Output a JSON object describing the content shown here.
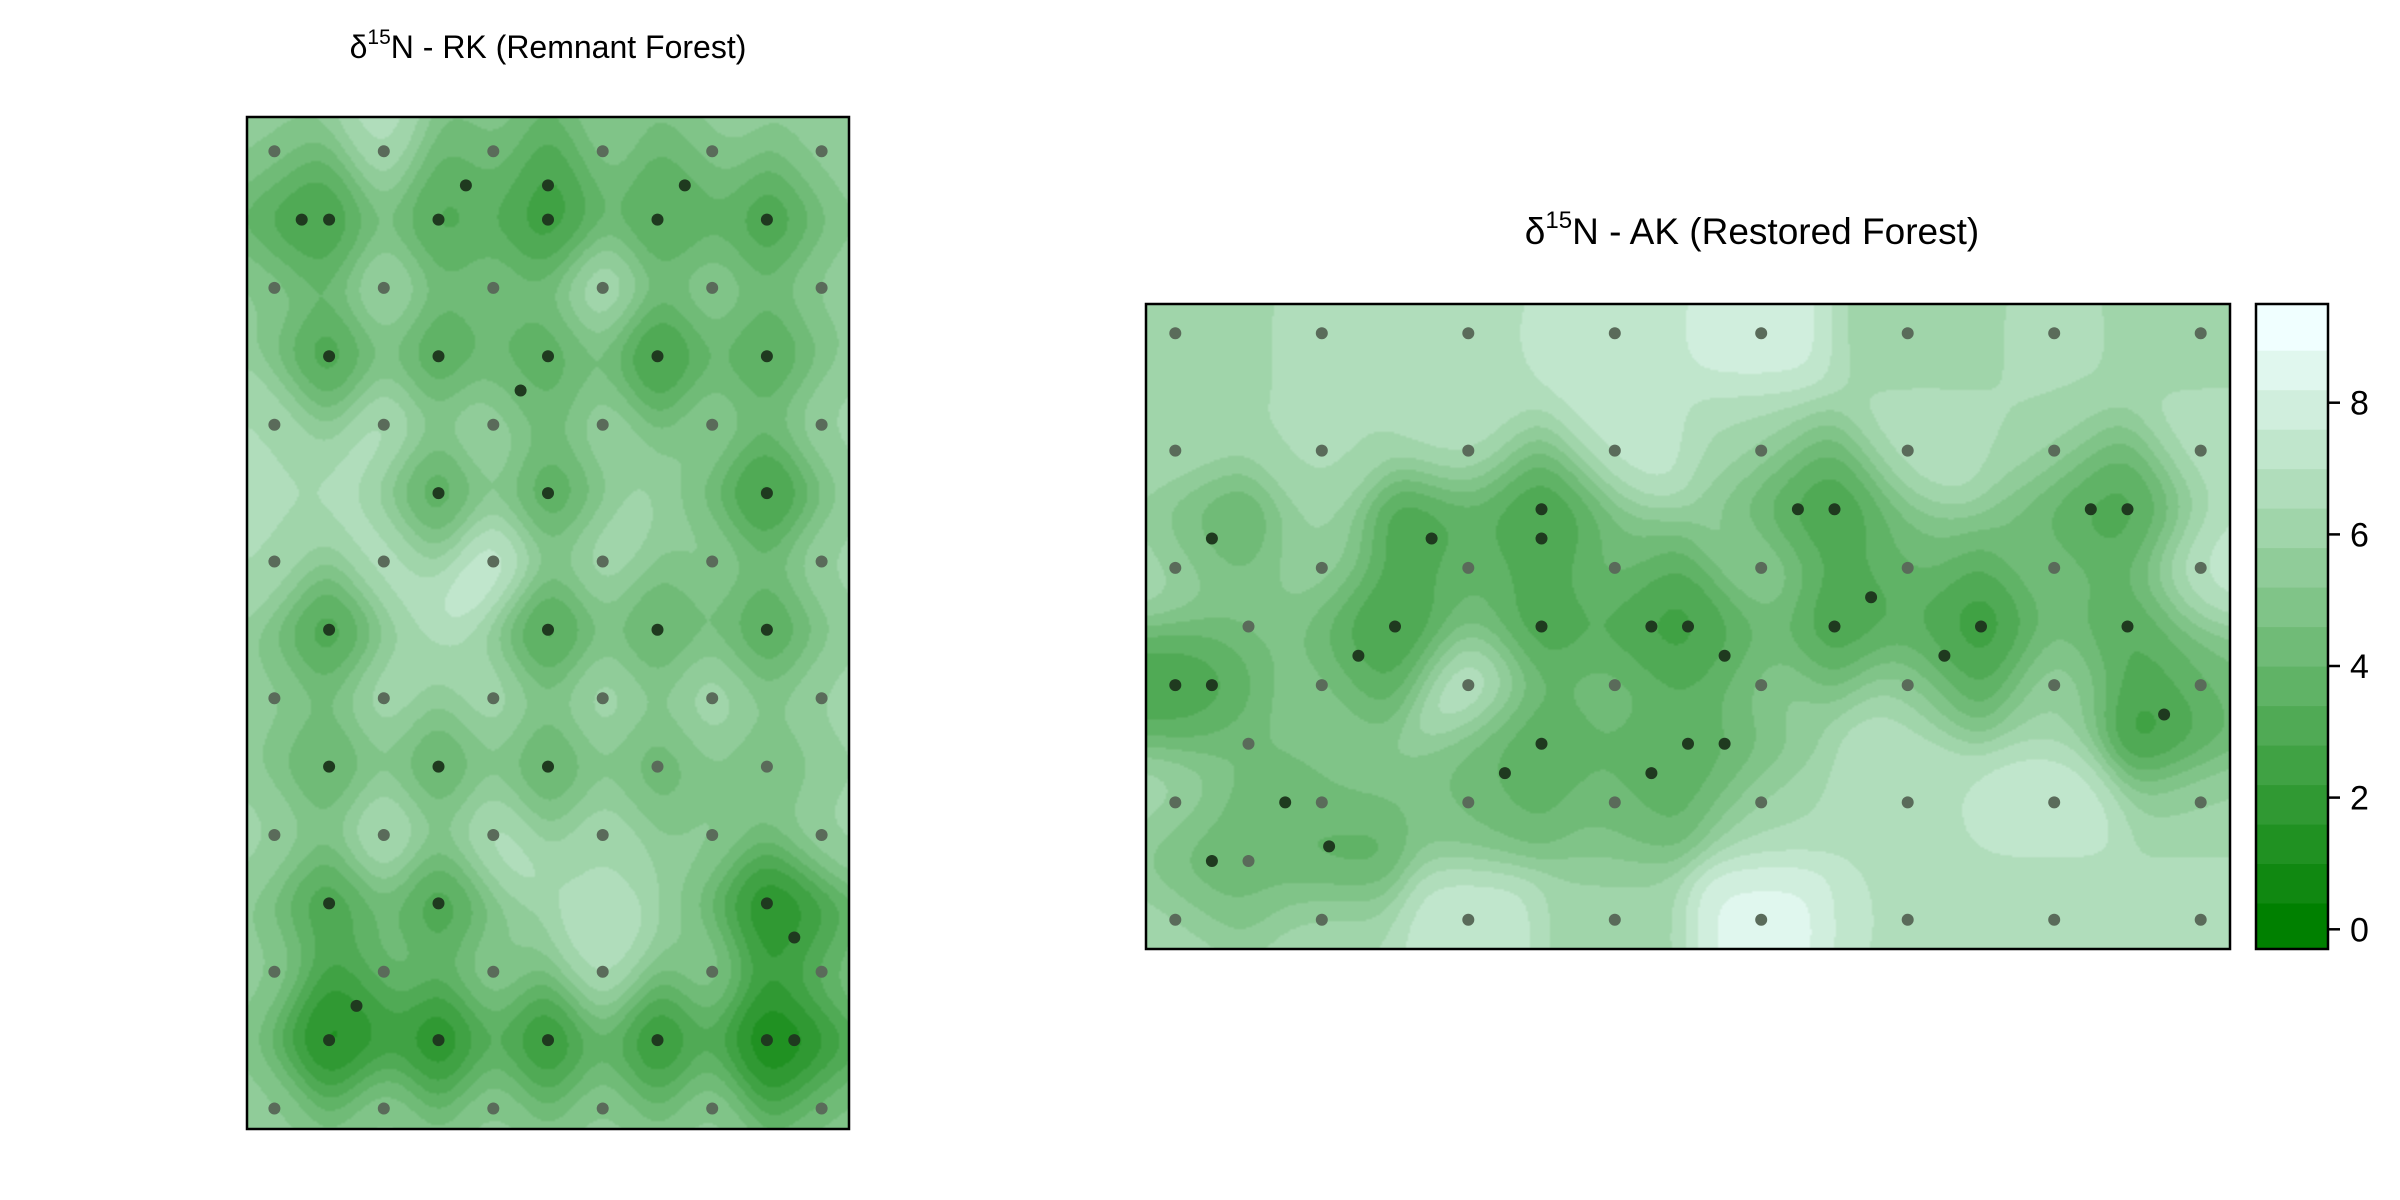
{
  "chart_data": [
    {
      "type": "heatmap",
      "title_prefix": "δ",
      "title_superscript": "15",
      "title_suffix": "N - RK (Remnant Forest)",
      "xlabel": "",
      "ylabel": "",
      "zlim": [
        -0.3,
        9.5
      ],
      "grid": false,
      "samples": [
        [
          0,
          0,
          5.5
        ],
        [
          1,
          0,
          6.8
        ],
        [
          2,
          0,
          5.5
        ],
        [
          3,
          0,
          5.5
        ],
        [
          4,
          0,
          6.0
        ],
        [
          5,
          0,
          5.5
        ],
        [
          0.25,
          0.5,
          2.0
        ],
        [
          0.5,
          0.5,
          3.0
        ],
        [
          1.5,
          0.5,
          3.0
        ],
        [
          1.75,
          0.25,
          3.0
        ],
        [
          2.5,
          0.25,
          2.0
        ],
        [
          2.5,
          0.5,
          2.3
        ],
        [
          3.5,
          0.5,
          3.0
        ],
        [
          3.75,
          0.25,
          3.0
        ],
        [
          4.5,
          0.5,
          2.5
        ],
        [
          0,
          1,
          5.5
        ],
        [
          1,
          1,
          6.5
        ],
        [
          2,
          1,
          4.8
        ],
        [
          3,
          1,
          7.0
        ],
        [
          4,
          1,
          5.5
        ],
        [
          5,
          1,
          5.5
        ],
        [
          0.5,
          1.5,
          2.5
        ],
        [
          1.5,
          1.5,
          3.0
        ],
        [
          2.5,
          1.5,
          3.5
        ],
        [
          2.25,
          1.75,
          3.2
        ],
        [
          3.5,
          1.5,
          2.0
        ],
        [
          4.5,
          1.5,
          3.0
        ],
        [
          0,
          2,
          6.5
        ],
        [
          1,
          2,
          7.0
        ],
        [
          2,
          2,
          7.2
        ],
        [
          3,
          2,
          6.0
        ],
        [
          4,
          2,
          5.5
        ],
        [
          5,
          2,
          6.0
        ],
        [
          1.5,
          2.5,
          3.0
        ],
        [
          2.5,
          2.5,
          3.0
        ],
        [
          4.5,
          2.5,
          2.0
        ],
        [
          0,
          3,
          6.5
        ],
        [
          1,
          3,
          7.0
        ],
        [
          2,
          3,
          8.0
        ],
        [
          3,
          3,
          6.5
        ],
        [
          4,
          3,
          5.5
        ],
        [
          5,
          3,
          6.0
        ],
        [
          0.5,
          3.5,
          2.5
        ],
        [
          2.5,
          3.5,
          2.5
        ],
        [
          3.5,
          3.5,
          3.5
        ],
        [
          4.5,
          3.5,
          3.0
        ],
        [
          0,
          4,
          5.5
        ],
        [
          1,
          4,
          6.5
        ],
        [
          2,
          4,
          6.5
        ],
        [
          3,
          4,
          6.5
        ],
        [
          4,
          4,
          6.5
        ],
        [
          5,
          4,
          6.0
        ],
        [
          0.5,
          4.5,
          3.5
        ],
        [
          1.5,
          4.5,
          3.5
        ],
        [
          2.5,
          4.5,
          3.5
        ],
        [
          3.5,
          4.5,
          4.0
        ],
        [
          4.5,
          4.5,
          4.5
        ],
        [
          0,
          5,
          6.0
        ],
        [
          1,
          5,
          7.2
        ],
        [
          2,
          5,
          7.0
        ],
        [
          3,
          5,
          6.5
        ],
        [
          4,
          5,
          5.5
        ],
        [
          5,
          5,
          6.0
        ],
        [
          0.5,
          5.5,
          2.5
        ],
        [
          1.5,
          5.5,
          2.5
        ],
        [
          4.5,
          5.5,
          1.5
        ],
        [
          4.75,
          5.75,
          0.8
        ],
        [
          0,
          6,
          5.5
        ],
        [
          1,
          6,
          5.5
        ],
        [
          2,
          6,
          5.5
        ],
        [
          3,
          6,
          7.0
        ],
        [
          4,
          6,
          5.5
        ],
        [
          5,
          6,
          5.5
        ],
        [
          0.5,
          6.5,
          1.0
        ],
        [
          0.75,
          6.25,
          0.8
        ],
        [
          1.5,
          6.5,
          1.0
        ],
        [
          2.5,
          6.5,
          1.5
        ],
        [
          3.5,
          6.5,
          1.5
        ],
        [
          4.5,
          6.5,
          0.8
        ],
        [
          4.75,
          6.5,
          0.5
        ],
        [
          0,
          7,
          5.5
        ],
        [
          1,
          7,
          5.5
        ],
        [
          2,
          7,
          5.5
        ],
        [
          3,
          7,
          5.5
        ],
        [
          4,
          7,
          5.5
        ],
        [
          5,
          7,
          5.0
        ]
      ]
    },
    {
      "type": "heatmap",
      "title_prefix": "δ",
      "title_superscript": "15",
      "title_suffix": "N - AK (Restored Forest)",
      "xlabel": "",
      "ylabel": "",
      "zlim": [
        -0.3,
        9.5
      ],
      "grid": false,
      "colorbar": {
        "ticks": [
          0,
          2,
          4,
          6,
          8
        ],
        "tick_labels": [
          "0",
          "2",
          "4",
          "6",
          "8"
        ],
        "levels": [
          -0.3,
          0.4,
          1.0,
          1.6,
          2.2,
          2.8,
          3.4,
          4.0,
          4.6,
          5.2,
          5.8,
          6.4,
          7.0,
          7.6,
          8.2,
          8.8,
          9.5
        ]
      },
      "samples": [
        [
          0,
          0,
          6.0
        ],
        [
          1,
          0,
          6.5
        ],
        [
          2,
          0,
          7.0
        ],
        [
          3,
          0,
          7.5
        ],
        [
          4,
          0,
          8.0
        ],
        [
          5,
          0,
          6.0
        ],
        [
          6,
          0,
          6.5
        ],
        [
          7,
          0,
          6.0
        ],
        [
          0,
          0.8,
          6.5
        ],
        [
          1,
          0.8,
          6.5
        ],
        [
          2,
          0.8,
          7.0
        ],
        [
          3,
          0.8,
          7.5
        ],
        [
          4,
          0.8,
          6.5
        ],
        [
          5,
          0.8,
          7.0
        ],
        [
          6,
          0.8,
          6.5
        ],
        [
          7,
          0.8,
          7.0
        ],
        [
          0.25,
          1.4,
          3.0
        ],
        [
          1.75,
          1.4,
          2.0
        ],
        [
          2.5,
          1.2,
          2.5
        ],
        [
          2.5,
          1.4,
          2.5
        ],
        [
          4.25,
          1.2,
          2.5
        ],
        [
          4.5,
          1.2,
          2.5
        ],
        [
          6.25,
          1.2,
          2.5
        ],
        [
          6.5,
          1.2,
          3.0
        ],
        [
          0,
          1.6,
          7.0
        ],
        [
          1,
          1.6,
          6.0
        ],
        [
          2,
          1.6,
          5.0
        ],
        [
          3,
          1.6,
          5.0
        ],
        [
          4,
          1.6,
          6.5
        ],
        [
          5,
          1.6,
          5.0
        ],
        [
          6,
          1.6,
          5.0
        ],
        [
          7,
          1.6,
          7.5
        ],
        [
          0.5,
          2.0,
          5.0
        ],
        [
          1.25,
          2.2,
          2.5
        ],
        [
          1.5,
          2.0,
          2.0
        ],
        [
          2.5,
          2.0,
          2.5
        ],
        [
          3.25,
          2.0,
          2.0
        ],
        [
          3.5,
          2.0,
          2.5
        ],
        [
          3.75,
          2.2,
          2.5
        ],
        [
          4.5,
          2.0,
          2.5
        ],
        [
          4.75,
          1.8,
          2.5
        ],
        [
          5.25,
          2.2,
          2.0
        ],
        [
          5.5,
          2.0,
          2.0
        ],
        [
          6.5,
          2.0,
          3.0
        ],
        [
          0,
          2.4,
          3.0
        ],
        [
          0.25,
          2.4,
          2.5
        ],
        [
          1,
          2.4,
          6.0
        ],
        [
          2,
          2.4,
          8.0
        ],
        [
          3,
          2.4,
          5.0
        ],
        [
          4,
          2.4,
          6.5
        ],
        [
          5,
          2.4,
          7.5
        ],
        [
          6,
          2.4,
          6.0
        ],
        [
          7,
          2.4,
          5.0
        ],
        [
          6.75,
          2.6,
          1.5
        ],
        [
          0.5,
          2.8,
          5.0
        ],
        [
          2.25,
          3.0,
          3.5
        ],
        [
          2.5,
          2.8,
          3.0
        ],
        [
          3.25,
          3.0,
          3.0
        ],
        [
          3.5,
          2.8,
          3.5
        ],
        [
          3.75,
          2.8,
          3.5
        ],
        [
          0,
          3.2,
          6.5
        ],
        [
          0.75,
          3.2,
          3.0
        ],
        [
          1,
          3.2,
          6.0
        ],
        [
          2,
          3.2,
          5.0
        ],
        [
          3,
          3.2,
          5.0
        ],
        [
          4,
          3.2,
          6.5
        ],
        [
          5,
          3.2,
          7.0
        ],
        [
          6,
          3.2,
          7.5
        ],
        [
          7,
          3.2,
          6.0
        ],
        [
          0.25,
          3.6,
          3.0
        ],
        [
          0.5,
          3.6,
          5.0
        ],
        [
          1.05,
          3.5,
          2.5
        ],
        [
          0,
          4,
          6.5
        ],
        [
          1,
          4,
          6.5
        ],
        [
          2,
          4,
          7.5
        ],
        [
          3,
          4,
          6.0
        ],
        [
          4,
          4,
          8.5
        ],
        [
          5,
          4,
          7.0
        ],
        [
          6,
          4,
          6.5
        ],
        [
          7,
          4,
          7.0
        ]
      ]
    }
  ]
}
